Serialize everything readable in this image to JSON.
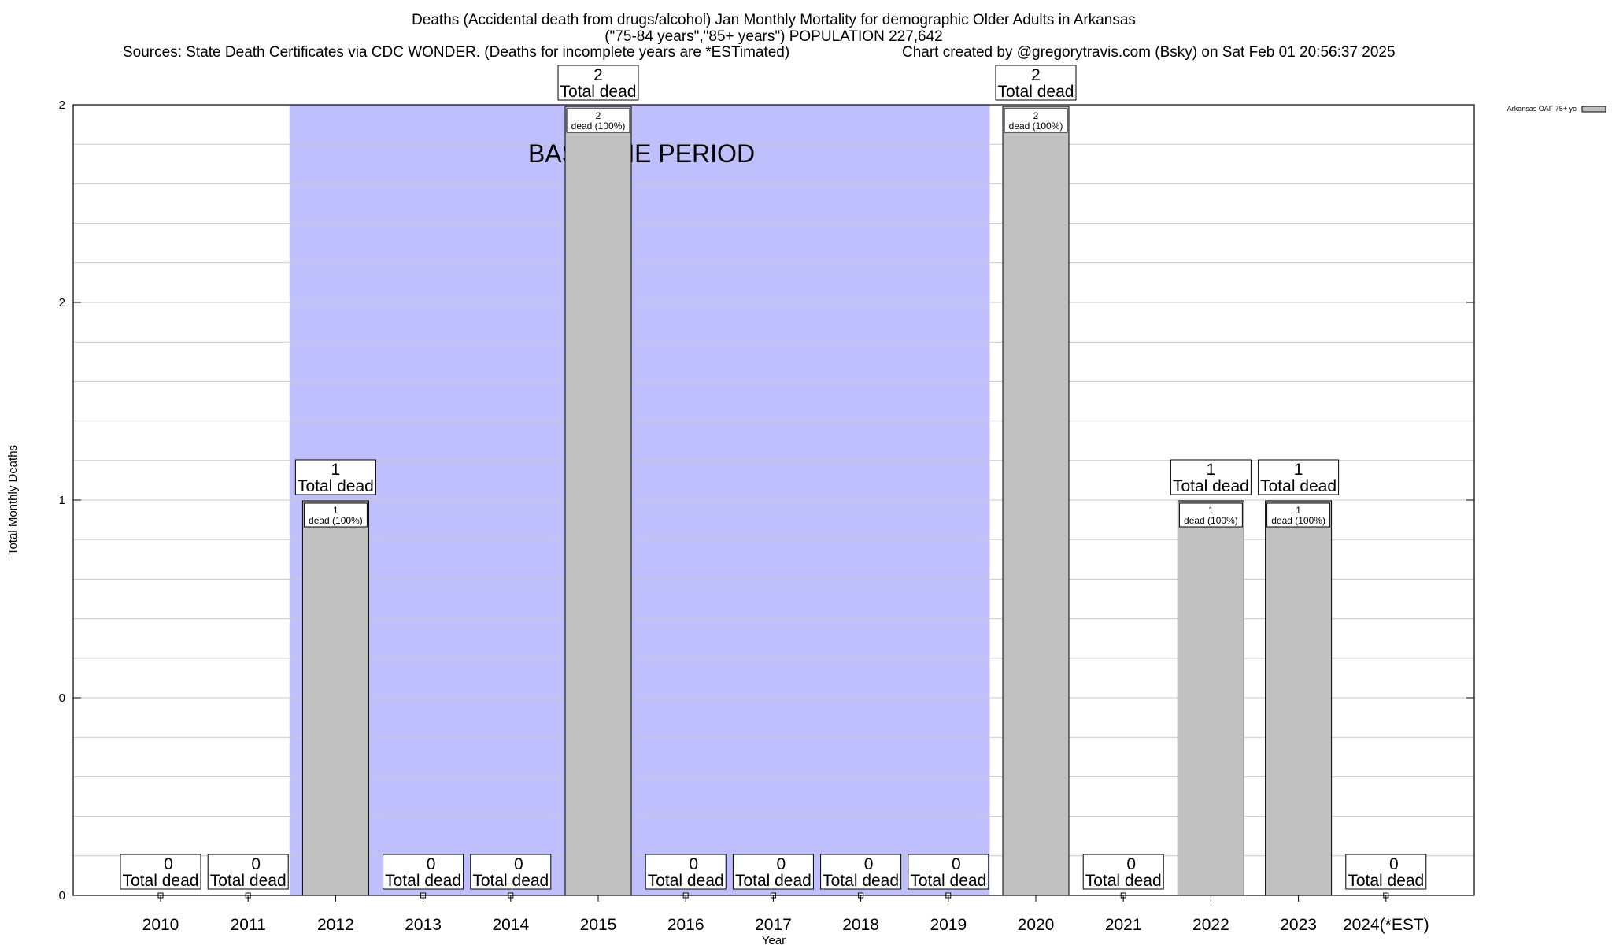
{
  "chart_data": {
    "type": "bar",
    "title_lines": [
      "Deaths (Accidental death from drugs/alcohol) Jan Monthly Mortality for demographic Older Adults in Arkansas",
      "(\"75-84 years\",\"85+ years\") POPULATION 227,642"
    ],
    "sources_text": "Sources: State Death Certificates via CDC WONDER. (Deaths for incomplete years are *ESTimated)",
    "credit_text": "Chart created by @gregorytravis.com (Bsky) on Sat Feb 01 20:56:37 2025",
    "xlabel": "Year",
    "ylabel": "Total Monthly Deaths",
    "ylim": [
      0,
      2
    ],
    "y_tick_labels": [
      "0",
      "0",
      "1",
      "2",
      "2"
    ],
    "categories": [
      "2010",
      "2011",
      "2012",
      "2013",
      "2014",
      "2015",
      "2016",
      "2017",
      "2018",
      "2019",
      "2020",
      "2021",
      "2022",
      "2023",
      "2024(*EST)"
    ],
    "series": [
      {
        "name": "Arkansas OAF 75+ yo",
        "values": [
          0,
          0,
          1,
          0,
          0,
          2,
          0,
          0,
          0,
          0,
          2,
          0,
          1,
          1,
          0
        ],
        "color": "#c0c0c0"
      }
    ],
    "total_label_suffix": "Total dead",
    "inner_label_suffix": "dead (100%)",
    "baseline_period": {
      "label": "BASELINE PERIOD",
      "start": "2012",
      "end": "2019",
      "color": "#bfbffd"
    },
    "grid": true,
    "legend_position": "top-right"
  }
}
